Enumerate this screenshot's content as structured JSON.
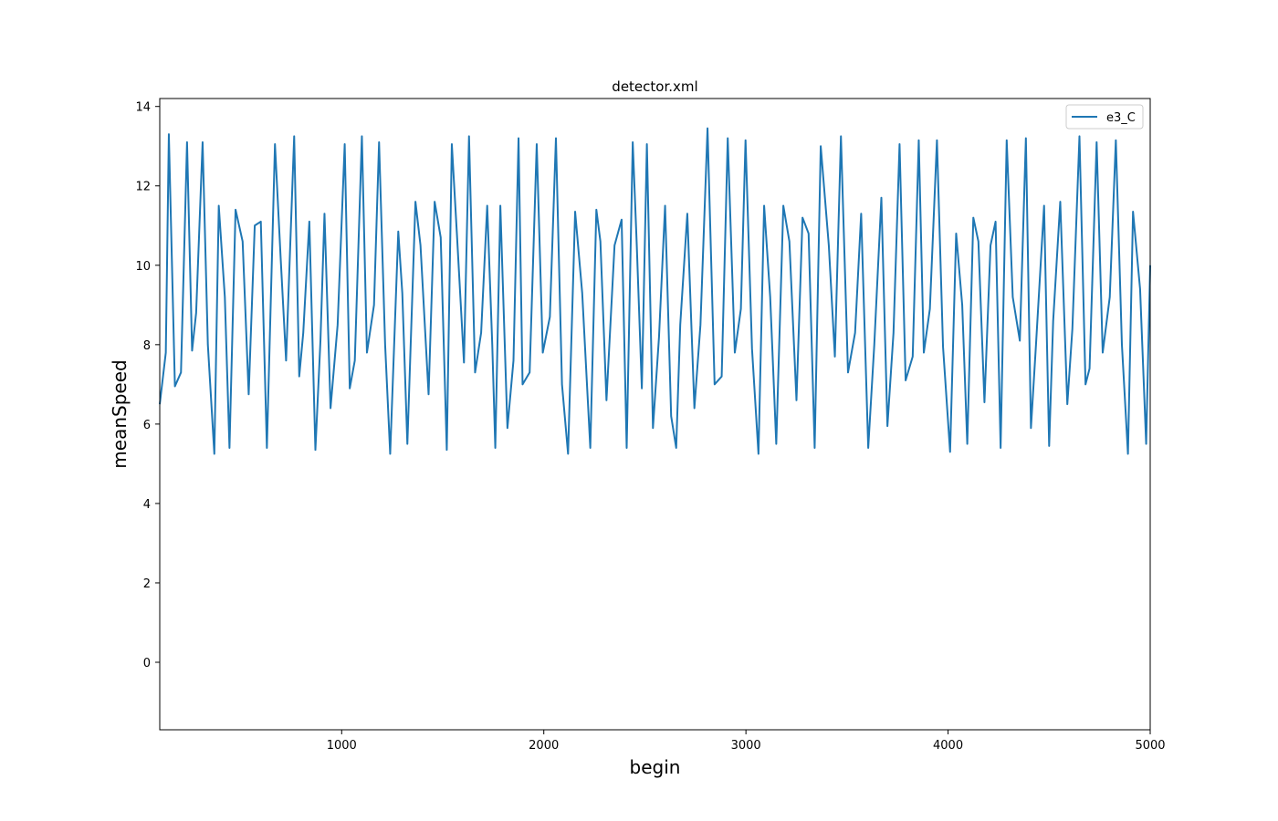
{
  "chart_data": {
    "type": "line",
    "title": "detector.xml",
    "xlabel": "begin",
    "ylabel": "meanSpeed",
    "xlim": [
      100,
      5000
    ],
    "ylim": [
      -1.7,
      14.2
    ],
    "xticks": [
      1000,
      2000,
      3000,
      4000,
      5000
    ],
    "yticks": [
      0,
      2,
      4,
      6,
      8,
      10,
      12,
      14
    ],
    "grid": false,
    "legend_position": "top-right",
    "series": [
      {
        "name": "e3_C",
        "color": "#1f77b4",
        "x": [
          100,
          130,
          145,
          175,
          205,
          235,
          260,
          280,
          312,
          338,
          370,
          392,
          422,
          445,
          475,
          510,
          540,
          570,
          600,
          630,
          670,
          698,
          725,
          765,
          790,
          810,
          840,
          870,
          895,
          915,
          945,
          980,
          1015,
          1040,
          1065,
          1100,
          1125,
          1160,
          1185,
          1215,
          1240,
          1280,
          1300,
          1325,
          1365,
          1390,
          1430,
          1460,
          1490,
          1520,
          1545,
          1570,
          1605,
          1630,
          1660,
          1690,
          1720,
          1745,
          1760,
          1785,
          1820,
          1850,
          1875,
          1895,
          1930,
          1965,
          1995,
          2030,
          2060,
          2090,
          2120,
          2155,
          2190,
          2230,
          2260,
          2280,
          2310,
          2350,
          2385,
          2410,
          2440,
          2460,
          2485,
          2510,
          2540,
          2570,
          2600,
          2630,
          2655,
          2675,
          2710,
          2745,
          2775,
          2810,
          2845,
          2880,
          2910,
          2945,
          2975,
          2998,
          3030,
          3062,
          3090,
          3120,
          3150,
          3185,
          3215,
          3250,
          3280,
          3310,
          3340,
          3370,
          3410,
          3440,
          3470,
          3505,
          3540,
          3570,
          3605,
          3635,
          3670,
          3700,
          3730,
          3760,
          3790,
          3825,
          3855,
          3880,
          3910,
          3945,
          3975,
          4010,
          4040,
          4070,
          4095,
          4125,
          4150,
          4180,
          4210,
          4235,
          4260,
          4290,
          4320,
          4355,
          4385,
          4410,
          4435,
          4475,
          4500,
          4520,
          4555,
          4590,
          4615,
          4650,
          4680,
          4700,
          4735,
          4765,
          4800,
          4830,
          4860,
          4890,
          4915,
          4950,
          4980,
          5000
        ],
        "y": [
          6.5,
          7.8,
          13.3,
          6.95,
          7.3,
          13.1,
          7.85,
          8.8,
          13.1,
          8.0,
          5.25,
          11.5,
          9.2,
          5.4,
          11.4,
          10.6,
          6.75,
          11.0,
          11.1,
          5.4,
          13.05,
          10.2,
          7.6,
          13.25,
          7.2,
          8.3,
          11.1,
          5.35,
          8.1,
          11.3,
          6.4,
          8.5,
          13.05,
          6.9,
          7.6,
          13.25,
          7.8,
          9.0,
          13.1,
          8.0,
          5.25,
          10.85,
          9.3,
          5.5,
          11.6,
          10.5,
          6.75,
          11.6,
          10.7,
          5.35,
          13.05,
          10.8,
          7.55,
          13.25,
          7.3,
          8.3,
          11.5,
          8.0,
          5.4,
          11.5,
          5.9,
          7.6,
          13.2,
          7.0,
          7.3,
          13.05,
          7.8,
          8.7,
          13.2,
          7.0,
          5.25,
          11.35,
          9.3,
          5.4,
          11.4,
          10.6,
          6.6,
          10.5,
          11.15,
          5.4,
          13.1,
          10.5,
          6.9,
          13.05,
          5.9,
          8.2,
          11.5,
          6.2,
          5.4,
          8.5,
          11.3,
          6.4,
          8.5,
          13.45,
          7.0,
          7.2,
          13.2,
          7.8,
          8.9,
          13.15,
          7.9,
          5.25,
          11.5,
          9.2,
          5.5,
          11.5,
          10.6,
          6.6,
          11.2,
          10.8,
          5.4,
          13.0,
          10.5,
          7.7,
          13.25,
          7.3,
          8.3,
          11.3,
          5.4,
          8.0,
          11.7,
          5.95,
          8.3,
          13.05,
          7.1,
          7.7,
          13.15,
          7.8,
          8.9,
          13.15,
          7.95,
          5.3,
          10.8,
          9.0,
          5.5,
          11.2,
          10.6,
          6.55,
          10.5,
          11.1,
          5.4,
          13.15,
          9.2,
          8.1,
          13.2,
          5.9,
          8.0,
          11.5,
          5.45,
          8.6,
          11.6,
          6.5,
          8.4,
          13.25,
          7.0,
          7.4,
          13.1,
          7.8,
          9.2,
          13.15,
          8.0,
          5.25,
          11.35,
          9.4,
          5.5,
          10.0
        ]
      }
    ]
  }
}
